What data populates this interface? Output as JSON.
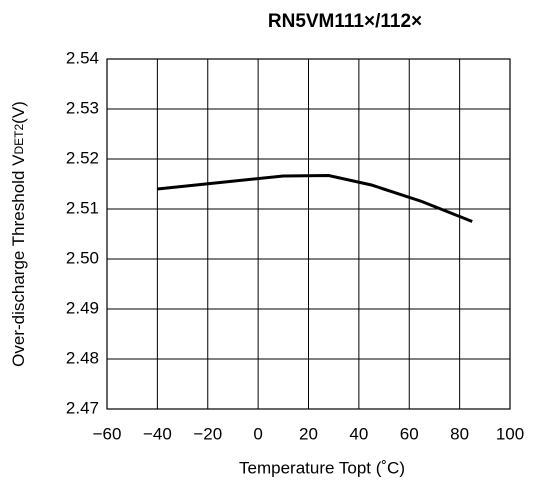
{
  "chart_data": {
    "type": "line",
    "title": "RN5VM111×/112×",
    "x_label": "Temperature Topt (˚C)",
    "y_label": {
      "text": "Over-discharge Threshold V",
      "subscript": "DET2",
      "suffix": "(V)"
    },
    "x": [
      -40,
      10,
      28,
      45,
      65,
      85
    ],
    "series": [
      {
        "color": "#000000",
        "values": [
          2.514,
          2.5166,
          2.5167,
          2.5148,
          2.5115,
          2.5075
        ]
      }
    ],
    "xlim": [
      -60,
      100
    ],
    "xticks": [
      {
        "value": -60,
        "label": "−60"
      },
      {
        "value": -40,
        "label": "−40"
      },
      {
        "value": -20,
        "label": "−20"
      },
      0,
      20,
      40,
      60,
      80,
      100
    ],
    "ylim": [
      2.47,
      2.54
    ],
    "yticks": [
      2.47,
      2.48,
      2.49,
      {
        "value": 2.5,
        "label": "2.50"
      },
      2.51,
      2.52,
      2.53,
      2.54
    ],
    "grid": true
  }
}
